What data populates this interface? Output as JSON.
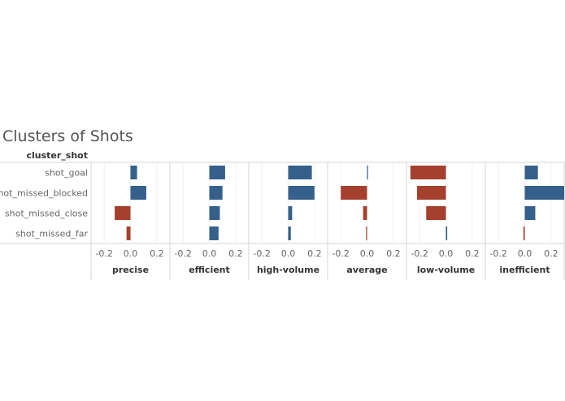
{
  "chart_data": {
    "type": "bar",
    "orientation": "horizontal",
    "title": "Clusters of Shots",
    "row_header": "cluster_shot",
    "categories": [
      "shot_goal",
      "shot_missed_blocked",
      "shot_missed_close",
      "shot_missed_far"
    ],
    "panels": [
      {
        "name": "precise",
        "values": [
          0.05,
          0.12,
          -0.12,
          -0.03
        ]
      },
      {
        "name": "efficient",
        "values": [
          0.12,
          0.1,
          0.08,
          0.07
        ]
      },
      {
        "name": "high-volume",
        "values": [
          0.18,
          0.2,
          0.03,
          0.02
        ]
      },
      {
        "name": "average",
        "values": [
          0.005,
          -0.2,
          -0.03,
          -0.005
        ]
      },
      {
        "name": "low-volume",
        "values": [
          -0.27,
          -0.22,
          -0.15,
          0.01
        ]
      },
      {
        "name": "inefficient",
        "values": [
          0.1,
          0.3,
          0.08,
          -0.01
        ]
      }
    ],
    "xlim": [
      -0.3,
      0.3
    ],
    "xticks": [
      -0.2,
      0.0,
      0.2
    ],
    "xtick_labels": [
      "-0.2",
      "0.0",
      "0.2"
    ],
    "colors": {
      "positive": "#35608c",
      "negative": "#a6402e"
    }
  }
}
